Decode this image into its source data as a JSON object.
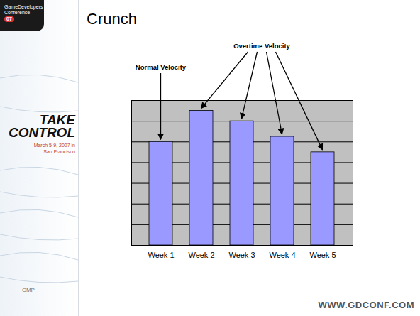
{
  "chart_data": {
    "type": "bar",
    "title": "Crunch",
    "categories": [
      "Week 1",
      "Week 2",
      "Week 3",
      "Week 4",
      "Week 5"
    ],
    "values": [
      5,
      6.5,
      6,
      5.25,
      4.5
    ],
    "color": "#9999ff",
    "ylim": [
      0,
      7
    ],
    "yticks": [
      0,
      1,
      2,
      3,
      4,
      5,
      6,
      7
    ],
    "grid": true,
    "tick_labels": "x",
    "annotations": [
      {
        "text": "Normal Velocity",
        "categories": [
          "Week 1"
        ]
      },
      {
        "text": "Overtime Velocity",
        "categories": [
          "Week 2",
          "Week 3",
          "Week 4",
          "Week 5"
        ]
      }
    ]
  },
  "page": {
    "footer": "WWW.GDCONF.COM",
    "sidebar": {
      "logo": "GameDevelopers",
      "logo_sub": "Conference",
      "edition": "07",
      "slogan": [
        "TAKE",
        "CONTROL"
      ],
      "dates": [
        "March 5-9, 2007 in",
        "San Francisco"
      ],
      "sponsor": "CMP"
    }
  }
}
